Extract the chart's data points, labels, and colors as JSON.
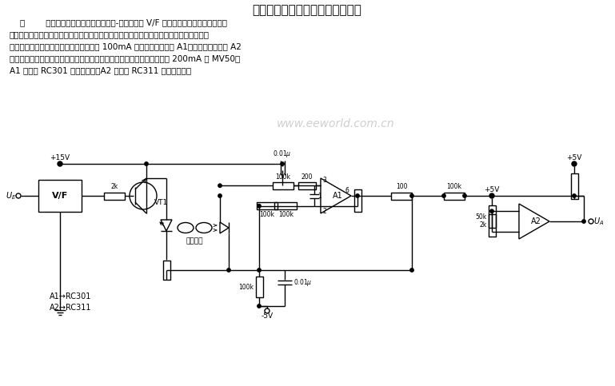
{
  "title": "采用光导纤维传输数据的耦合电路",
  "body_text": [
    "    图        电路首先将输入模拟信号经电压-频率变换器 V/F 变换为频率信号，由发光二极",
    "管送进光导纤维。光导纤维或聚苯乙烯杆的长度决定于数字或模拟信号输入端和光敏二极管",
    "之间隔离的电压值。光敏二极管可驱动有 100mA 输出的运算放大器 A1，再经运算放大器 A2",
    "放大就可驱动电缆、继电器或扬声器等负载。发光二极管可采用输出高达 200mA 的 MV50，",
    "A1 可采用 RC301 运算放大器，A2 可采用 RC311 运算放大器。"
  ],
  "watermark": "www.eeworld.com.cn",
  "bg_color": "#ffffff",
  "line_color": "#000000",
  "text_color": "#000000",
  "footnote_a1": "A1→RC301",
  "footnote_a2": "A2→RC311"
}
